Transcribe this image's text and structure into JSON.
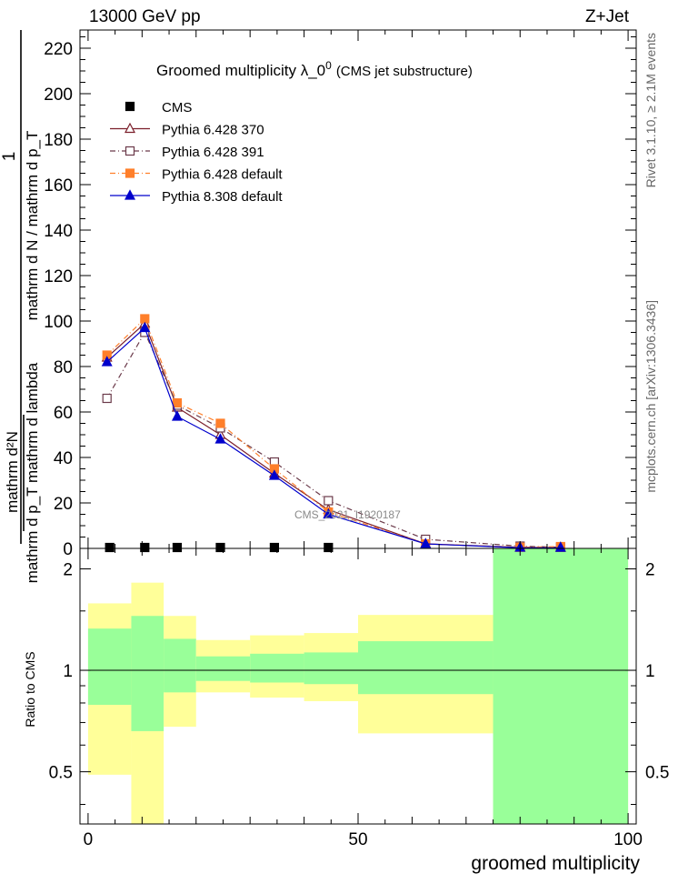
{
  "header": {
    "energy_label": "13000 GeV pp",
    "process_label": "Z+Jet"
  },
  "side_labels": {
    "rivet": "Rivet 3.1.10, ≥ 2.1M events",
    "mcplots": "mcplots.cern.ch [arXiv:1306.3436]"
  },
  "chart_data": [
    {
      "type": "line",
      "title": "Groomed multiplicity  λ_0",
      "title_superscript": "0",
      "subtitle": "(CMS jet substructure)",
      "watermark": "CMS_2021_I1920187",
      "ylabel": {
        "top_num": "1",
        "top_den": "mathrm d N / mathrm d p_T",
        "bottom_num": "mathrm d²N",
        "bottom_den": "mathrm d p_T mathrm d lambda"
      },
      "xlim": [
        -1.5,
        101.5
      ],
      "ylim": [
        0,
        228
      ],
      "yticks": [
        0,
        20,
        40,
        60,
        80,
        100,
        120,
        140,
        160,
        180,
        200,
        220
      ],
      "legend_position": "top-left",
      "series": [
        {
          "name": "CMS",
          "color": "#000000",
          "marker": "square-filled",
          "line": "none",
          "x": [
            4,
            10.5,
            16.5,
            24.5,
            34.5,
            44.5
          ],
          "y": [
            0,
            0,
            0,
            0,
            0,
            0
          ]
        },
        {
          "name": "Pythia 6.428 370",
          "color": "#7b1f2b",
          "marker": "triangle-open",
          "line": "solid",
          "x": [
            3.5,
            10.5,
            16.5,
            24.5,
            34.5,
            44.5,
            62.5,
            80,
            87.5
          ],
          "y": [
            84,
            99,
            62,
            50,
            33,
            17,
            2,
            0.5,
            0.2
          ]
        },
        {
          "name": "Pythia 6.428 391",
          "color": "#6b3a4a",
          "marker": "square-open",
          "line": "dashdot",
          "x": [
            3.5,
            10.5,
            16.5,
            24.5,
            34.5,
            44.5,
            62.5,
            80,
            87.5
          ],
          "y": [
            66,
            95,
            63,
            53,
            38,
            21,
            4,
            1,
            0.5
          ]
        },
        {
          "name": "Pythia 6.428 default",
          "color": "#ff7f2a",
          "marker": "square-filled",
          "line": "dashdot",
          "x": [
            3.5,
            10.5,
            16.5,
            24.5,
            34.5,
            44.5,
            62.5,
            80,
            87.5
          ],
          "y": [
            85,
            101,
            64,
            55,
            35,
            16,
            2,
            0.5,
            0.8
          ]
        },
        {
          "name": "Pythia 8.308 default",
          "color": "#0000cc",
          "marker": "triangle-filled",
          "line": "solid",
          "x": [
            3.5,
            10.5,
            16.5,
            24.5,
            34.5,
            44.5,
            62.5,
            80,
            87.5
          ],
          "y": [
            82,
            97,
            58,
            48,
            32,
            15,
            2,
            0.3,
            0.2
          ]
        }
      ]
    },
    {
      "type": "area",
      "ylabel": "Ratio to CMS",
      "xlabel": "groomed multiplicity",
      "xlim": [
        -1.5,
        101.5
      ],
      "ylim": [
        0.35,
        2.3
      ],
      "xticks": [
        0,
        50,
        100
      ],
      "yticks": [
        0.5,
        1,
        2
      ],
      "reference_line": 1,
      "bins": [
        {
          "x0": 0,
          "x1": 8,
          "inner": [
            0.79,
            1.33
          ],
          "outer": [
            0.49,
            1.58
          ]
        },
        {
          "x0": 8,
          "x1": 14,
          "inner": [
            0.66,
            1.45
          ],
          "outer": [
            0.35,
            1.82
          ]
        },
        {
          "x0": 14,
          "x1": 20,
          "inner": [
            0.86,
            1.24
          ],
          "outer": [
            0.68,
            1.45
          ]
        },
        {
          "x0": 20,
          "x1": 30,
          "inner": [
            0.93,
            1.1
          ],
          "outer": [
            0.86,
            1.23
          ]
        },
        {
          "x0": 30,
          "x1": 40,
          "inner": [
            0.92,
            1.12
          ],
          "outer": [
            0.83,
            1.27
          ]
        },
        {
          "x0": 40,
          "x1": 50,
          "inner": [
            0.91,
            1.13
          ],
          "outer": [
            0.81,
            1.29
          ]
        },
        {
          "x0": 50,
          "x1": 75,
          "inner": [
            0.85,
            1.22
          ],
          "outer": [
            0.65,
            1.46
          ]
        },
        {
          "x0": 75,
          "x1": 100,
          "inner": [
            0.35,
            2.3
          ],
          "outer": [
            0.35,
            2.3
          ]
        }
      ],
      "colors": {
        "inner": "#99ff99",
        "outer": "#ffff99"
      }
    }
  ]
}
